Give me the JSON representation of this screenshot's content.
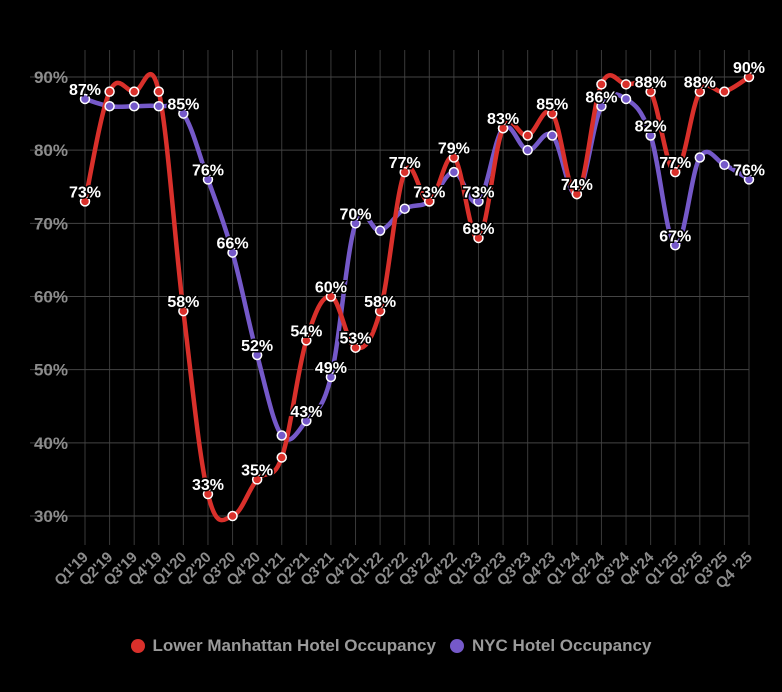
{
  "chart_data": {
    "type": "line",
    "x": [
      "Q1'19",
      "Q2'19",
      "Q3'19",
      "Q4'19",
      "Q1'20",
      "Q2'20",
      "Q3'20",
      "Q4'20",
      "Q1'21",
      "Q2'21",
      "Q3'21",
      "Q4'21",
      "Q1'22",
      "Q2'22",
      "Q3'22",
      "Q4'22",
      "Q1'23",
      "Q2'23",
      "Q3'23",
      "Q4'23",
      "Q1'24",
      "Q2'24",
      "Q3'24",
      "Q4'24",
      "Q1'25",
      "Q2'25",
      "Q3'25",
      "Q4'25"
    ],
    "x_tick_labels": [
      "Q1'19",
      "Q2'19",
      "Q3'19",
      "Q4'19",
      "Q1'20",
      "Q2'20",
      "Q3'20",
      "Q4'20",
      "Q1'21",
      "Q2'21",
      "Q3'21",
      "Q4'21",
      "Q1'22",
      "Q2'22",
      "Q3'22",
      "Q4'22",
      "Q1'23",
      "Q2'23",
      "Q3'23",
      "Q4'23",
      "Q1'24",
      "Q2'24",
      "Q3'24",
      "Q4'24",
      "Q1'25",
      "Q2'25",
      "Q3'25",
      "Q4 '25"
    ],
    "y_ticks": [
      "30%",
      "40%",
      "50%",
      "60%",
      "70%",
      "80%",
      "90%"
    ],
    "y_tick_values": [
      30,
      40,
      50,
      60,
      70,
      80,
      90
    ],
    "ylim": [
      25,
      92
    ],
    "grid": true,
    "legend_position": "bottom",
    "series": [
      {
        "name": "Lower Manhattan Hotel Occupancy",
        "color": "#d9302b",
        "values": [
          73,
          88,
          88,
          88,
          58,
          33,
          30,
          35,
          38,
          54,
          60,
          53,
          58,
          77,
          73,
          79,
          68,
          83,
          82,
          85,
          74,
          89,
          89,
          88,
          77,
          88,
          88,
          90
        ],
        "labels": [
          "73%",
          "",
          "",
          "",
          "58%",
          "33%",
          "",
          "35%",
          "",
          "54%",
          "60%",
          "53%",
          "58%",
          "77%",
          "",
          "79%",
          "68%",
          "",
          "",
          "85%",
          "",
          "",
          "",
          "88%",
          "77%",
          "88%",
          "",
          "90%"
        ]
      },
      {
        "name": "NYC Hotel Occupancy",
        "color": "#7559c9",
        "values": [
          87,
          86,
          86,
          86,
          85,
          76,
          66,
          52,
          41,
          43,
          49,
          70,
          69,
          72,
          73,
          77,
          73,
          83,
          80,
          82,
          74,
          86,
          87,
          82,
          67,
          79,
          78,
          76
        ],
        "labels": [
          "87%",
          "",
          "",
          "",
          "85%",
          "76%",
          "66%",
          "52%",
          "",
          "43%",
          "49%",
          "70%",
          "",
          "",
          "73%",
          "",
          "73%",
          "83%",
          "",
          "",
          "74%",
          "86%",
          "",
          "82%",
          "67%",
          "",
          "",
          "76%"
        ]
      }
    ]
  },
  "legend": {
    "items": [
      {
        "label": "Lower Manhattan Hotel Occupancy",
        "color": "#d9302b"
      },
      {
        "label": "NYC Hotel Occupancy",
        "color": "#7559c9"
      }
    ]
  }
}
